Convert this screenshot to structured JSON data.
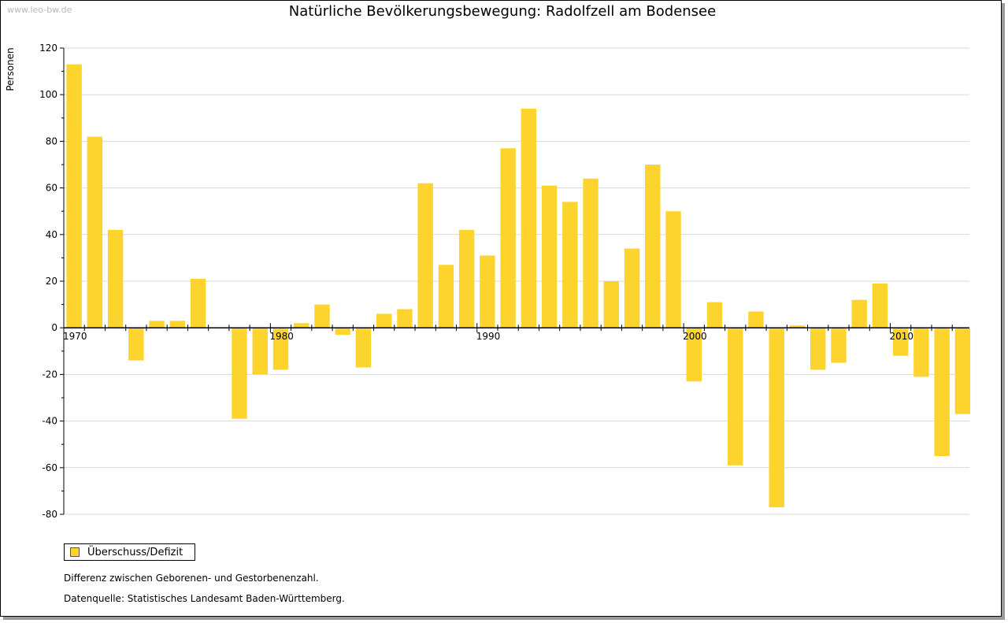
{
  "watermark": "www.leo-bw.de",
  "chart_data": {
    "type": "bar",
    "title": "Natürliche Bevölkerungsbewegung: Radolfzell am Bodensee",
    "xlabel": "",
    "ylabel": "Personen",
    "ylim": [
      -80,
      120
    ],
    "yticks": [
      "120",
      "100",
      "80",
      "60",
      "40",
      "20",
      "0",
      "-20",
      "-40",
      "-60",
      "-80"
    ],
    "xtick_labels": [
      "1970",
      "1980",
      "1990",
      "2000",
      "2010"
    ],
    "grid": true,
    "legend_position": "bottom-left",
    "bar_color": "#fdd42d",
    "years": [
      1970,
      1971,
      1972,
      1973,
      1974,
      1975,
      1976,
      1977,
      1978,
      1979,
      1980,
      1981,
      1982,
      1983,
      1984,
      1985,
      1986,
      1987,
      1988,
      1989,
      1990,
      1991,
      1992,
      1993,
      1994,
      1995,
      1996,
      1997,
      1998,
      1999,
      2000,
      2001,
      2002,
      2003,
      2004,
      2005,
      2006,
      2007,
      2008,
      2009,
      2010,
      2011,
      2012,
      2013,
      2014
    ],
    "series": [
      {
        "name": "Überschuss/Defizit",
        "values": [
          113,
          82,
          42,
          -14,
          3,
          3,
          21,
          null,
          -39,
          -20,
          -18,
          2,
          10,
          -3,
          -17,
          6,
          8,
          62,
          27,
          42,
          31,
          77,
          94,
          61,
          54,
          64,
          20,
          34,
          70,
          50,
          -23,
          11,
          -59,
          7,
          -77,
          1,
          -18,
          -15,
          12,
          19,
          -12,
          -21,
          -55,
          -37,
          null
        ]
      }
    ]
  },
  "legend": {
    "label": "Überschuss/Defizit"
  },
  "notes": {
    "line1": "Differenz zwischen Geborenen- und Gestorbenenzahl.",
    "line2": "Datenquelle: Statistisches Landesamt Baden-Württemberg."
  }
}
